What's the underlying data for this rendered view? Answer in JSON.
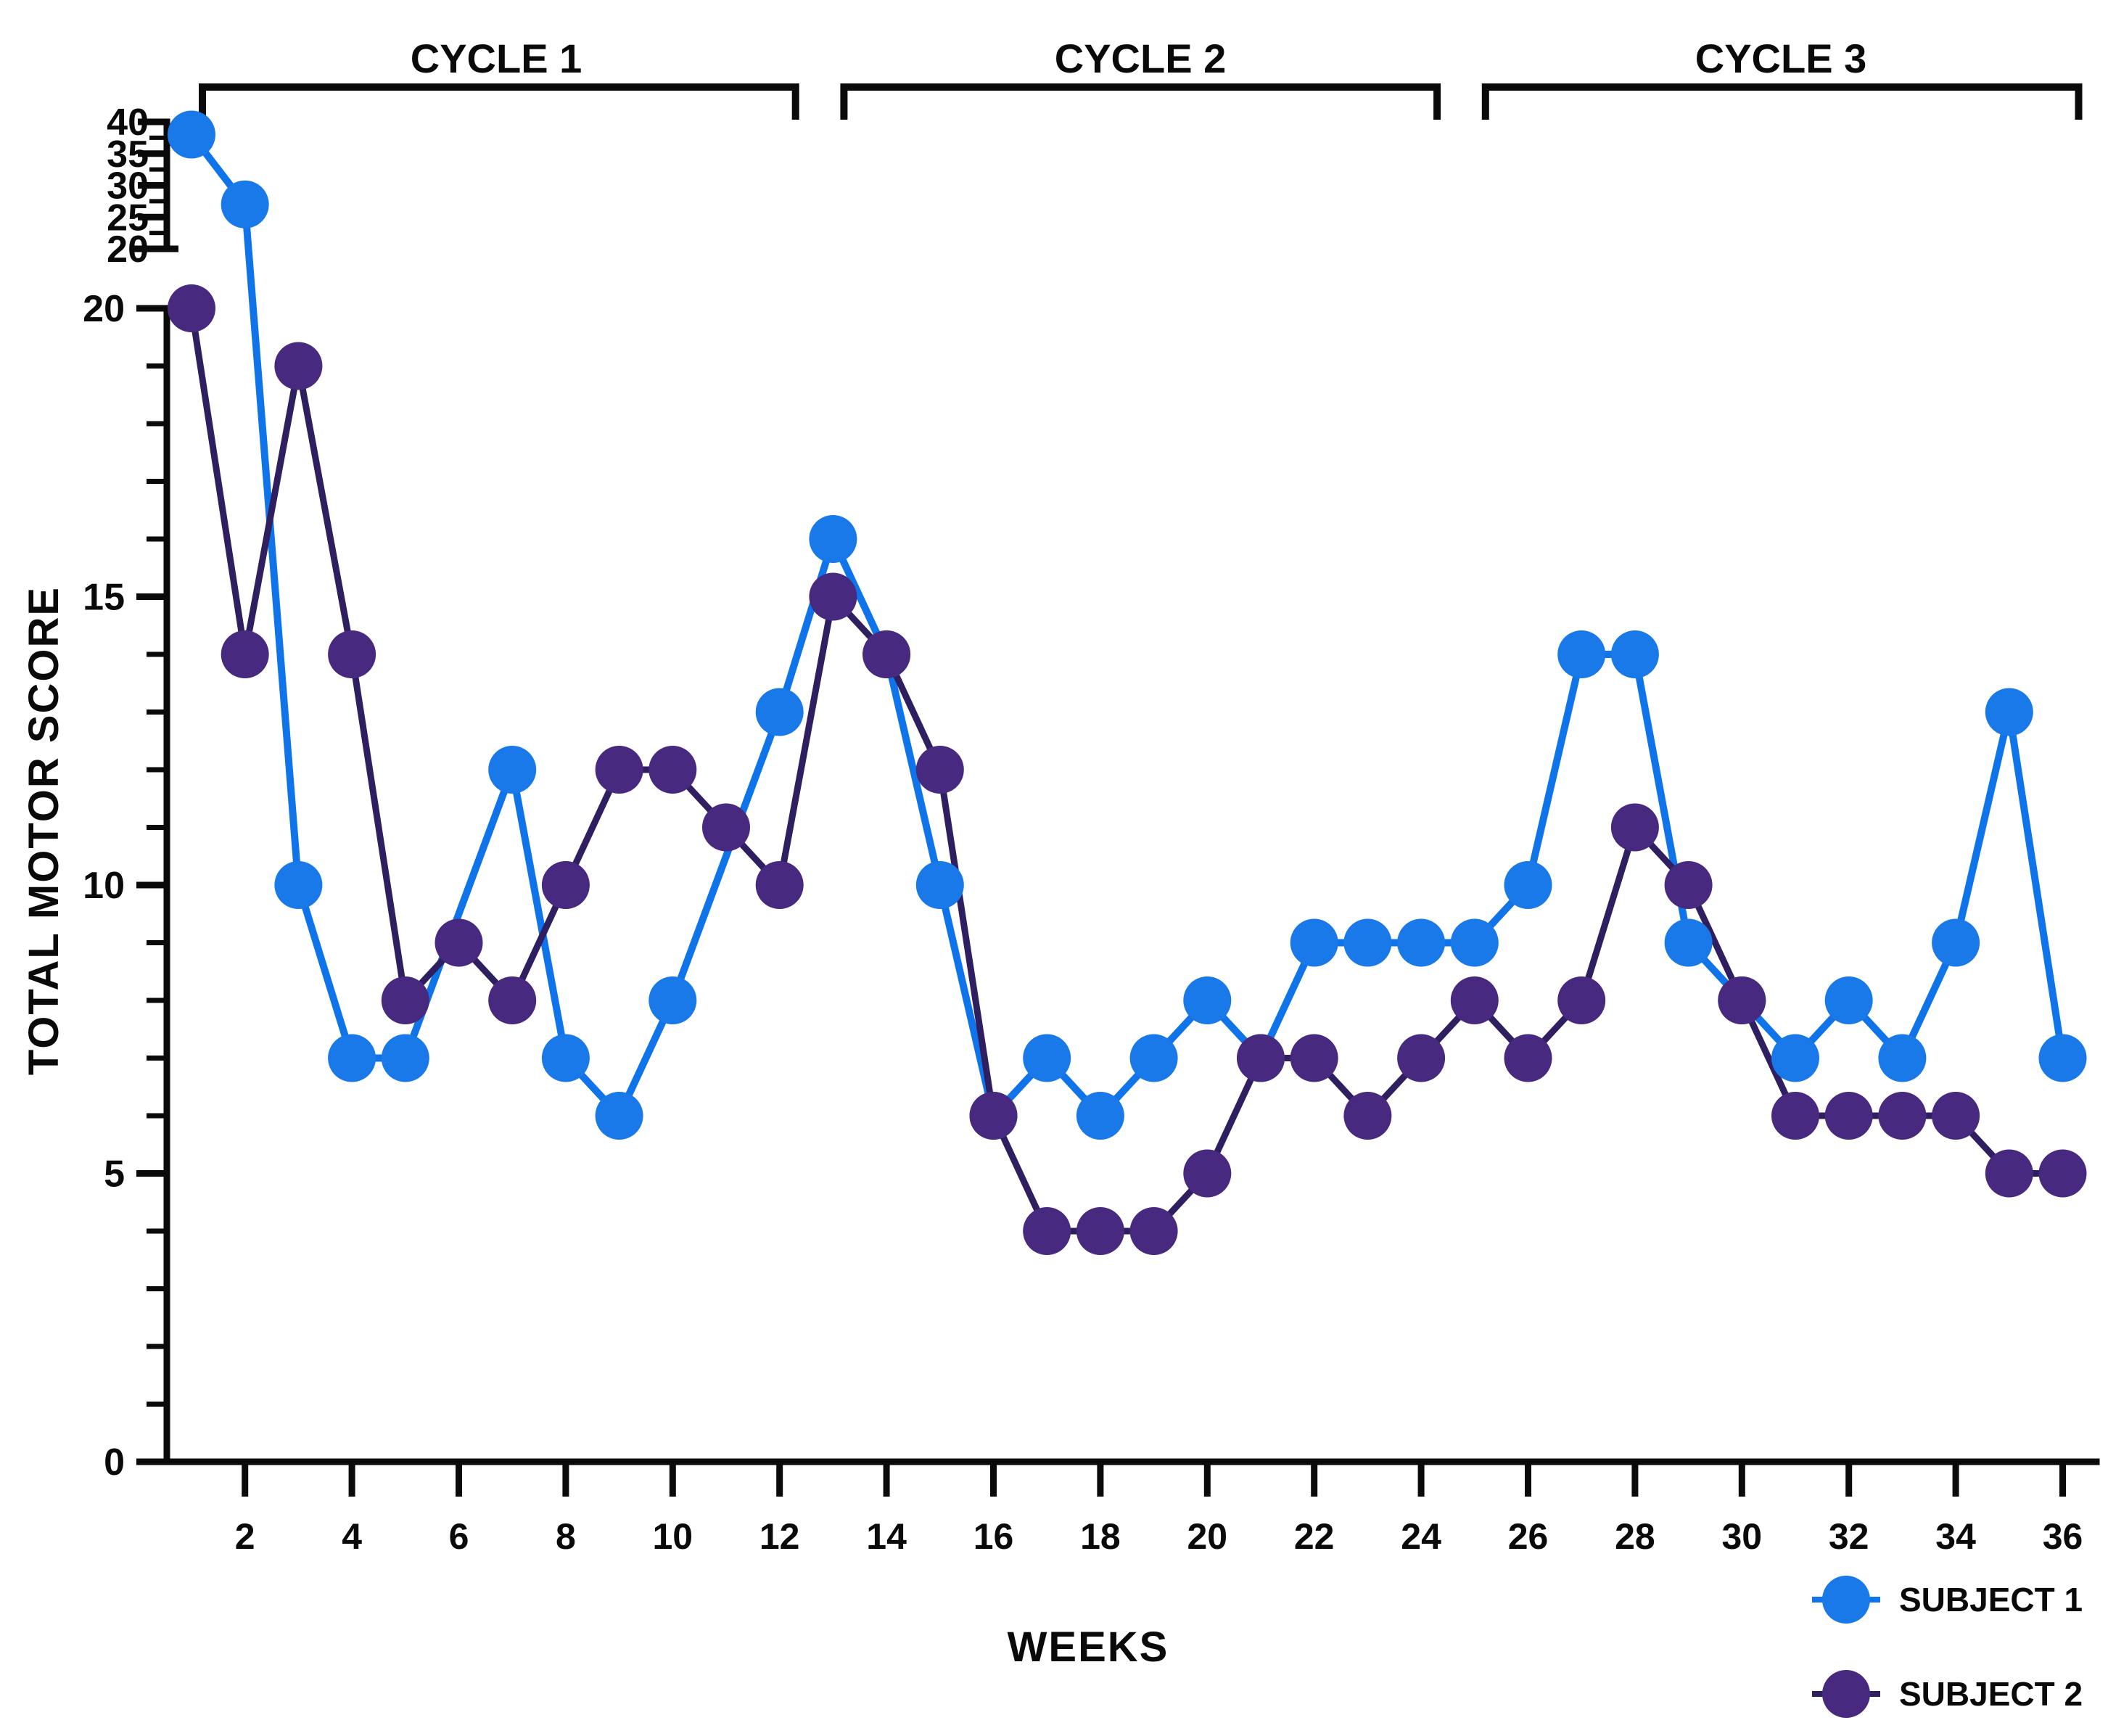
{
  "figure": {
    "x_axis_title": "WEEKS",
    "y_axis_title": "TOTAL MOTOR SCORE"
  },
  "chart_data": {
    "type": "line",
    "x_label": "WEEKS",
    "y_label": "TOTAL MOTOR SCORE",
    "weeks": [
      1,
      2,
      3,
      4,
      5,
      6,
      7,
      8,
      9,
      10,
      11,
      12,
      13,
      14,
      15,
      16,
      17,
      18,
      19,
      20,
      21,
      22,
      23,
      24,
      25,
      26,
      27,
      28,
      29,
      30,
      31,
      32,
      33,
      34,
      35,
      36
    ],
    "x_tick_labels": [
      2,
      4,
      6,
      8,
      10,
      12,
      14,
      16,
      18,
      20,
      22,
      24,
      26,
      28,
      30,
      32,
      34,
      36
    ],
    "y_axis_main": {
      "min": 0,
      "max": 20,
      "major_ticks": [
        0,
        5,
        10,
        15,
        20
      ],
      "minor_step": 1
    },
    "y_axis_upper_segment": {
      "min": 20,
      "max": 40,
      "major_ticks": [
        20,
        25,
        30,
        35,
        40
      ],
      "minor_step": 2.5,
      "note": "broken y-axis upper segment"
    },
    "grid": "off",
    "legend_position": "bottom-right",
    "series": [
      {
        "name": "SUBJECT 1",
        "marker_color": "#1a79e8",
        "line_color": "#0f74e9",
        "values": [
          38,
          27,
          10,
          7,
          7,
          null,
          12,
          7,
          6,
          8,
          null,
          13,
          16,
          14,
          10,
          6,
          7,
          6,
          7,
          8,
          7,
          9,
          9,
          9,
          9,
          10,
          14,
          14,
          9,
          8,
          7,
          8,
          7,
          9,
          13,
          7
        ]
      },
      {
        "name": "SUBJECT 2",
        "marker_color": "#472a80",
        "line_color": "#2f1f60",
        "values": [
          20,
          14,
          19,
          14,
          8,
          9,
          8,
          10,
          12,
          12,
          11,
          10,
          15,
          14,
          12,
          6,
          4,
          4,
          4,
          5,
          7,
          7,
          6,
          7,
          8,
          7,
          8,
          11,
          10,
          8,
          6,
          6,
          6,
          6,
          5,
          5
        ]
      }
    ],
    "cycles": [
      {
        "label": "CYCLE 1",
        "week_start": 1,
        "week_end": 12
      },
      {
        "label": "CYCLE 2",
        "week_start": 13,
        "week_end": 24
      },
      {
        "label": "CYCLE 3",
        "week_start": 25,
        "week_end": 36
      }
    ]
  }
}
